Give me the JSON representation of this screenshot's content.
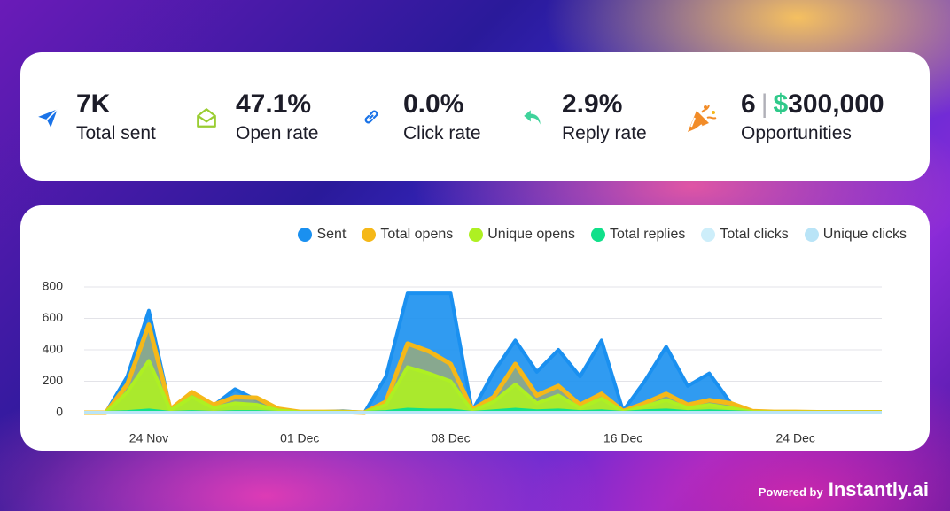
{
  "stats": [
    {
      "value": "7K",
      "label": "Total sent"
    },
    {
      "value": "47.1%",
      "label": "Open rate"
    },
    {
      "value": "0.0%",
      "label": "Click rate"
    },
    {
      "value": "2.9%",
      "label": "Reply rate"
    }
  ],
  "opportunities": {
    "count": "6",
    "separator": "|",
    "currency": "$",
    "amount": "300,000",
    "label": "Opportunities"
  },
  "chart_data": {
    "type": "area",
    "categories": [
      null,
      null,
      null,
      "24 Nov",
      null,
      null,
      null,
      null,
      null,
      null,
      "01 Dec",
      null,
      null,
      null,
      null,
      null,
      null,
      "08 Dec",
      null,
      null,
      null,
      null,
      null,
      null,
      null,
      "16 Dec",
      null,
      null,
      null,
      null,
      null,
      null,
      null,
      "24 Dec",
      null,
      null,
      null,
      null
    ],
    "series": [
      {
        "name": "Sent",
        "color": "#1a90f0",
        "values": [
          0,
          0,
          230,
          650,
          20,
          130,
          45,
          150,
          80,
          20,
          5,
          5,
          10,
          0,
          230,
          760,
          760,
          760,
          10,
          260,
          460,
          260,
          400,
          230,
          460,
          10,
          200,
          420,
          170,
          250,
          60,
          10,
          5,
          5,
          5,
          5,
          5,
          5
        ]
      },
      {
        "name": "Total opens",
        "color": "#f5b818",
        "values": [
          0,
          0,
          180,
          560,
          20,
          130,
          50,
          100,
          95,
          25,
          5,
          5,
          5,
          0,
          70,
          440,
          390,
          310,
          20,
          100,
          310,
          110,
          170,
          50,
          120,
          10,
          60,
          120,
          50,
          80,
          60,
          10,
          5,
          5,
          3,
          3,
          3,
          3
        ]
      },
      {
        "name": "Unique opens",
        "color": "#aef022",
        "values": [
          0,
          0,
          130,
          330,
          15,
          100,
          30,
          60,
          50,
          15,
          3,
          3,
          3,
          0,
          50,
          290,
          250,
          200,
          10,
          70,
          180,
          60,
          110,
          30,
          90,
          5,
          40,
          80,
          30,
          50,
          30,
          5,
          2,
          2,
          2,
          2,
          2,
          2
        ]
      },
      {
        "name": "Total replies",
        "color": "#10e08a",
        "values": [
          0,
          0,
          5,
          15,
          0,
          5,
          0,
          5,
          5,
          0,
          0,
          0,
          0,
          0,
          5,
          20,
          15,
          15,
          0,
          10,
          20,
          10,
          15,
          5,
          10,
          0,
          10,
          15,
          5,
          10,
          5,
          0,
          0,
          0,
          0,
          0,
          0,
          0
        ]
      },
      {
        "name": "Total clicks",
        "color": "#cdeefa",
        "values": [
          0,
          0,
          0,
          0,
          0,
          0,
          0,
          0,
          0,
          0,
          0,
          0,
          0,
          0,
          0,
          0,
          0,
          0,
          0,
          0,
          0,
          0,
          0,
          0,
          0,
          0,
          0,
          0,
          0,
          0,
          0,
          0,
          0,
          0,
          0,
          0,
          0,
          0
        ]
      },
      {
        "name": "Unique clicks",
        "color": "#b9e4f7",
        "values": [
          0,
          0,
          0,
          0,
          0,
          0,
          0,
          0,
          0,
          0,
          0,
          0,
          0,
          0,
          0,
          0,
          0,
          0,
          0,
          0,
          0,
          0,
          0,
          0,
          0,
          0,
          0,
          0,
          0,
          0,
          0,
          0,
          0,
          0,
          0,
          0,
          0,
          0
        ]
      }
    ],
    "ylim": [
      0,
      800
    ],
    "yticks": [
      0,
      200,
      400,
      600,
      800
    ],
    "grid": true
  },
  "footer": {
    "powered_by": "Powered by",
    "brand": "Instantly.ai"
  }
}
